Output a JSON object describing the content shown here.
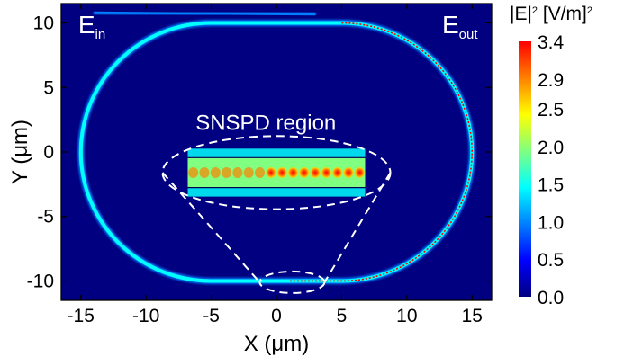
{
  "chart_data": {
    "type": "heatmap",
    "xlabel": "X (μm)",
    "ylabel": "Y (μm)",
    "xlim": [
      -16.5,
      16.5
    ],
    "ylim": [
      -11.5,
      11.5
    ],
    "xticks": [
      -15,
      -10,
      -5,
      0,
      5,
      10,
      15
    ],
    "yticks": [
      10,
      5,
      0,
      -5,
      -10
    ],
    "xtick_labels": [
      "-15",
      "-10",
      "-5",
      "0",
      "5",
      "10",
      "15"
    ],
    "ytick_labels": [
      "10",
      "5",
      "0",
      "-5",
      "-10"
    ],
    "colorbar": {
      "title": "|E|² [V/m]²",
      "title_main": "|E|",
      "title_sup1": "2",
      "title_unit": " [V/m]",
      "title_sup2": "2",
      "min": 0.0,
      "max": 3.4,
      "ticks": [
        3.4,
        2.9,
        2.5,
        2.0,
        1.5,
        1.0,
        0.5,
        0.0
      ],
      "tick_labels": [
        "3.4",
        "2.9",
        "2.5",
        "2.0",
        "1.5",
        "1.0",
        "0.5",
        "0.0"
      ],
      "colormap": [
        "#000080",
        "#0000ff",
        "#0080ff",
        "#00ffff",
        "#80ff80",
        "#ffff00",
        "#ff8000",
        "#ff0000"
      ]
    },
    "background_value": 0.0,
    "waveguide": {
      "racetrack_straight_x": [
        0,
        15
      ],
      "racetrack_radius": 15,
      "racetrack_center_y": 0,
      "bus_y": 10.8,
      "bus_x": [
        -14,
        3
      ],
      "field_intensity_typical": 1.6,
      "field_intensity_peak": 3.4
    },
    "annotations": {
      "input_label": "E",
      "input_sub": "in",
      "output_label": "E",
      "output_sub": "out",
      "region_label": "SNSPD region"
    },
    "inset": {
      "x_range": [
        -6.8,
        6.8
      ],
      "y_range": [
        -2.9,
        -0.3
      ],
      "spots": 16
    }
  }
}
